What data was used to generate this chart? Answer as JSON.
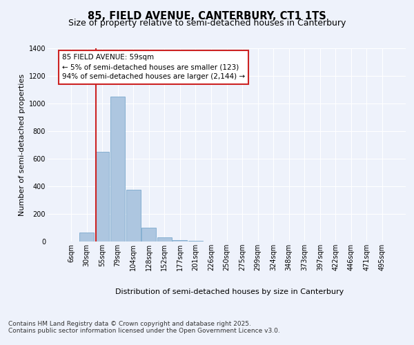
{
  "title_line1": "85, FIELD AVENUE, CANTERBURY, CT1 1TS",
  "title_line2": "Size of property relative to semi-detached houses in Canterbury",
  "xlabel": "Distribution of semi-detached houses by size in Canterbury",
  "ylabel": "Number of semi-detached properties",
  "footnote": "Contains HM Land Registry data © Crown copyright and database right 2025.\nContains public sector information licensed under the Open Government Licence v3.0.",
  "bar_labels": [
    "6sqm",
    "30sqm",
    "55sqm",
    "79sqm",
    "104sqm",
    "128sqm",
    "152sqm",
    "177sqm",
    "201sqm",
    "226sqm",
    "250sqm",
    "275sqm",
    "299sqm",
    "324sqm",
    "348sqm",
    "373sqm",
    "397sqm",
    "422sqm",
    "446sqm",
    "471sqm",
    "495sqm"
  ],
  "bar_values": [
    0,
    65,
    650,
    1050,
    375,
    100,
    28,
    10,
    3,
    1,
    0,
    0,
    0,
    0,
    0,
    0,
    0,
    0,
    0,
    0,
    0
  ],
  "bar_color": "#adc6e0",
  "bar_edge_color": "#7aa8cc",
  "highlight_color": "#cc2222",
  "annotation_text": "85 FIELD AVENUE: 59sqm\n← 5% of semi-detached houses are smaller (123)\n94% of semi-detached houses are larger (2,144) →",
  "ylim": [
    0,
    1400
  ],
  "yticks": [
    0,
    200,
    400,
    600,
    800,
    1000,
    1200,
    1400
  ],
  "bg_color": "#eef2fb",
  "plot_bg_color": "#eef2fb",
  "grid_color": "#ffffff",
  "title_fontsize": 10.5,
  "subtitle_fontsize": 9,
  "axis_label_fontsize": 8,
  "tick_fontsize": 7,
  "footnote_fontsize": 6.5,
  "annotation_fontsize": 7.5
}
